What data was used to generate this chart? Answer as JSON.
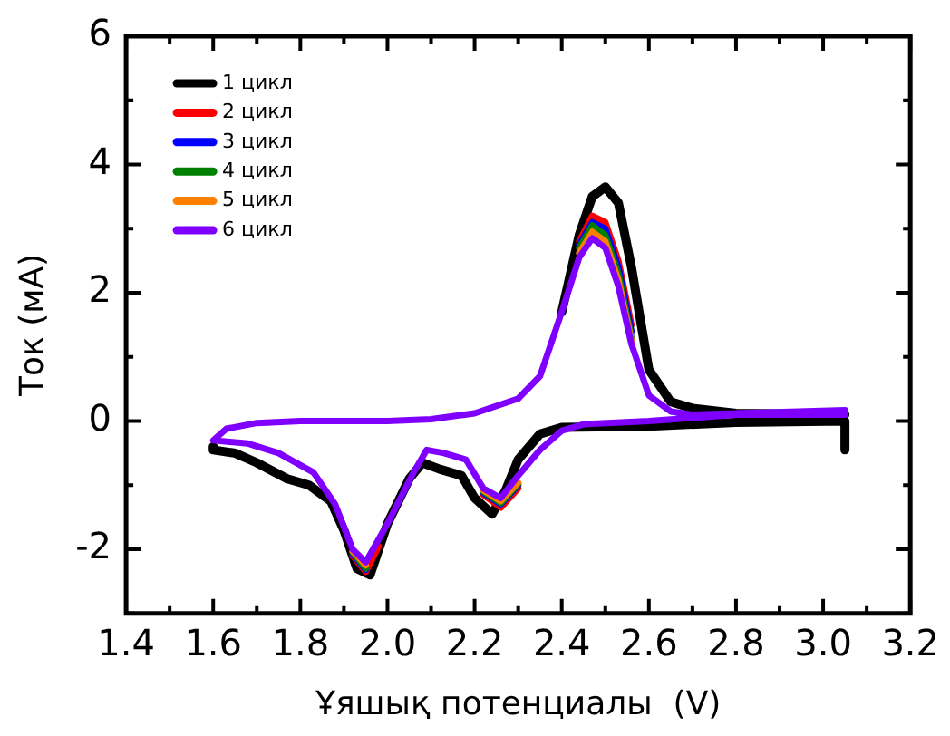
{
  "chart_data": {
    "type": "line",
    "xlabel": "Ұяшық потенциалы  (V)",
    "ylabel": "Ток (мА)",
    "xlim": [
      1.4,
      3.2
    ],
    "ylim": [
      -3,
      6
    ],
    "xticks": [
      1.4,
      {
        "value": 1.5,
        "label": null
      },
      1.6,
      {
        "value": 1.7,
        "label": null
      },
      1.8,
      {
        "value": 1.9,
        "label": null
      },
      {
        "value": 2.0,
        "label": "2.0"
      },
      {
        "value": 2.1,
        "label": null
      },
      2.2,
      {
        "value": 2.3,
        "label": null
      },
      2.4,
      {
        "value": 2.5,
        "label": null
      },
      2.6,
      {
        "value": 2.7,
        "label": null
      },
      2.8,
      {
        "value": 2.9,
        "label": null
      },
      {
        "value": 3.0,
        "label": "3.0"
      },
      {
        "value": 3.1,
        "label": null
      },
      3.2
    ],
    "yticks": [
      {
        "value": -3,
        "label": null
      },
      -2,
      {
        "value": -1,
        "label": null
      },
      {
        "value": 0,
        "label": "0"
      },
      {
        "value": 1,
        "label": null
      },
      2,
      {
        "value": 3,
        "label": null
      },
      4,
      {
        "value": 5,
        "label": null
      },
      6
    ],
    "grid": false,
    "legend": "top left",
    "marker": "none",
    "line_style": "solid",
    "series": [
      {
        "name": "1 цикл",
        "color": "#000000",
        "x": [
          3.05,
          3.05,
          2.8,
          2.6,
          2.4,
          2.35,
          2.3,
          2.27,
          2.24,
          2.2,
          2.17,
          2.12,
          2.08,
          2.05,
          2.0,
          1.96,
          1.93,
          1.9,
          1.87,
          1.82,
          1.77,
          1.7,
          1.65,
          1.6,
          1.6,
          1.65,
          1.75,
          2.0,
          2.1,
          2.2,
          2.3,
          2.35,
          2.4,
          2.44,
          2.47,
          2.5,
          2.53,
          2.56,
          2.6,
          2.65,
          2.7,
          2.8,
          3.05
        ],
        "values": [
          -0.45,
          0.0,
          -0.02,
          -0.08,
          -0.1,
          -0.2,
          -0.6,
          -1.1,
          -1.45,
          -1.2,
          -0.85,
          -0.75,
          -0.65,
          -0.9,
          -1.6,
          -2.4,
          -2.3,
          -1.7,
          -1.25,
          -1.0,
          -0.9,
          -0.65,
          -0.5,
          -0.45,
          -0.4,
          null,
          null,
          null,
          null,
          null,
          null,
          null,
          1.7,
          2.9,
          3.5,
          3.65,
          3.4,
          2.4,
          0.8,
          0.3,
          0.2,
          0.12,
          0.1
        ]
      },
      {
        "name": "2 цикл",
        "color": "#ff0000",
        "x": [
          2.44,
          2.47,
          2.5,
          2.53,
          2.56,
          2.4,
          1.92,
          1.95,
          1.98,
          2.1,
          2.22,
          2.26,
          2.3
        ],
        "values": [
          2.8,
          3.2,
          3.1,
          2.5,
          1.5,
          null,
          -2.1,
          -2.35,
          -1.95,
          null,
          -1.15,
          -1.35,
          -1.05
        ]
      },
      {
        "name": "3 цикл",
        "color": "#0000ff",
        "x": [
          2.44,
          2.47,
          2.5,
          2.53,
          2.56,
          2.4,
          1.92,
          1.95,
          1.98,
          2.1,
          2.22,
          2.26,
          2.3
        ],
        "values": [
          2.75,
          3.1,
          3.0,
          2.4,
          1.4,
          null,
          -2.07,
          -2.32,
          null,
          null,
          -1.12,
          -1.3,
          -1.0
        ]
      },
      {
        "name": "4 цикл",
        "color": "#008000",
        "x": [
          2.44,
          2.47,
          2.5,
          2.53,
          2.56,
          2.4,
          1.92,
          1.95,
          1.98,
          2.1,
          2.22,
          2.26,
          2.3
        ],
        "values": [
          2.7,
          3.05,
          2.9,
          2.3,
          1.3,
          null,
          -2.05,
          -2.3,
          null,
          null,
          -1.1,
          -1.28,
          -0.98
        ]
      },
      {
        "name": "5 цикл",
        "color": "#ff8000",
        "x": [
          2.44,
          2.47,
          2.5,
          2.53,
          2.56,
          2.4,
          1.92,
          1.95,
          1.98,
          2.1,
          2.22,
          2.26,
          2.3
        ],
        "values": [
          2.62,
          2.95,
          2.8,
          2.2,
          1.25,
          null,
          -2.03,
          -2.25,
          null,
          null,
          -1.08,
          -1.25,
          -0.96
        ]
      },
      {
        "name": "6 цикл",
        "color": "#8000ff",
        "x": [
          3.05,
          2.8,
          2.6,
          2.45,
          2.4,
          2.35,
          2.3,
          2.26,
          2.22,
          2.18,
          2.13,
          2.09,
          2.06,
          2.0,
          1.95,
          1.92,
          1.88,
          1.83,
          1.75,
          1.68,
          1.6,
          1.6,
          1.63,
          1.7,
          1.8,
          2.0,
          2.1,
          2.2,
          2.3,
          2.35,
          2.4,
          2.44,
          2.47,
          2.5,
          2.53,
          2.56,
          2.6,
          2.65,
          2.7,
          2.8,
          3.05
        ],
        "values": [
          0.1,
          0.1,
          0.0,
          -0.05,
          -0.15,
          -0.45,
          -0.85,
          -1.2,
          -1.05,
          -0.6,
          -0.5,
          -0.45,
          -0.8,
          -1.6,
          -2.2,
          -2.0,
          -1.3,
          -0.8,
          -0.5,
          -0.35,
          -0.3,
          -0.3,
          -0.12,
          -0.03,
          0.0,
          0.0,
          0.03,
          0.12,
          0.35,
          0.7,
          1.7,
          2.55,
          2.85,
          2.7,
          2.1,
          1.2,
          0.4,
          0.15,
          0.1,
          0.12,
          0.17
        ]
      }
    ]
  }
}
